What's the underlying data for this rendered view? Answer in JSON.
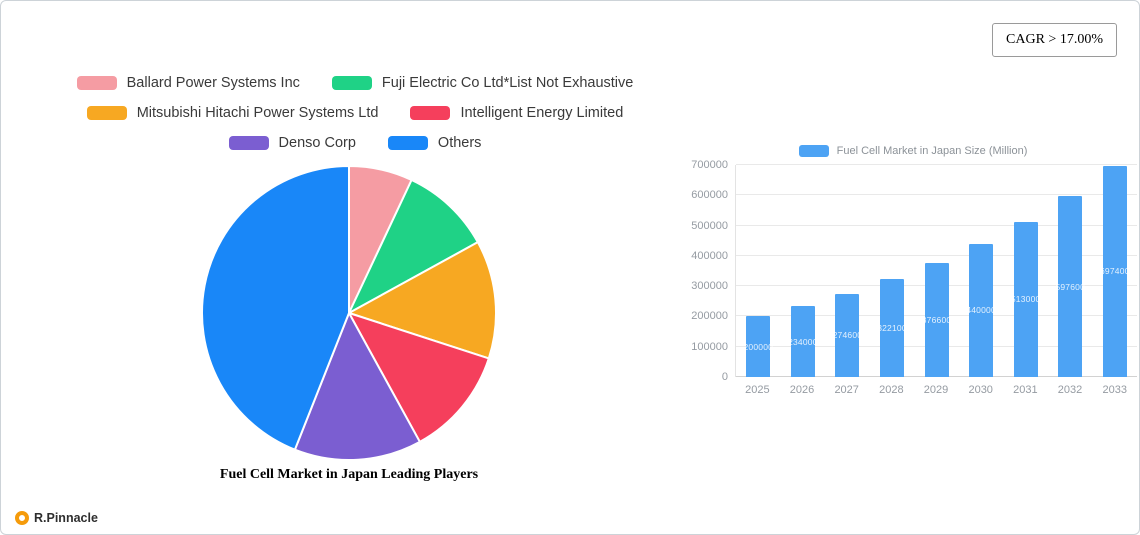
{
  "header": {
    "cagr_label": "CAGR > 17.00%"
  },
  "footer": {
    "brand": "R.Pinnacle"
  },
  "chart_data": [
    {
      "type": "pie",
      "title": "Fuel Cell Market in Japan Leading Players",
      "labels": [
        "Ballard Power Systems Inc",
        "Fuji Electric Co Ltd*List Not Exhaustive",
        "Mitsubishi Hitachi Power Systems Ltd",
        "Intelligent Energy Limited",
        "Denso Corp",
        "Others"
      ],
      "values_pct": [
        7,
        10,
        13,
        12,
        14,
        44
      ],
      "colors": [
        "#f59ca3",
        "#1fd286",
        "#f7a822",
        "#f53f5c",
        "#7b5ed1",
        "#1987f8"
      ],
      "legend_position": "top",
      "start_angle_deg": 0,
      "direction": "clockwise"
    },
    {
      "type": "bar",
      "legend": "Fuel Cell Market in Japan Size (Million)",
      "categories": [
        "2025",
        "2026",
        "2027",
        "2028",
        "2029",
        "2030",
        "2031",
        "2032",
        "2033"
      ],
      "values": [
        200000,
        234000,
        274600,
        322100,
        376600,
        440000,
        513000,
        597600,
        697400
      ],
      "bar_color": "#4da3f4",
      "ylim": [
        0,
        700000
      ],
      "yticks": [
        0,
        100000,
        200000,
        300000,
        400000,
        500000,
        600000,
        700000
      ],
      "grid": true,
      "legend_position": "top",
      "value_labels": "inside-center"
    }
  ]
}
